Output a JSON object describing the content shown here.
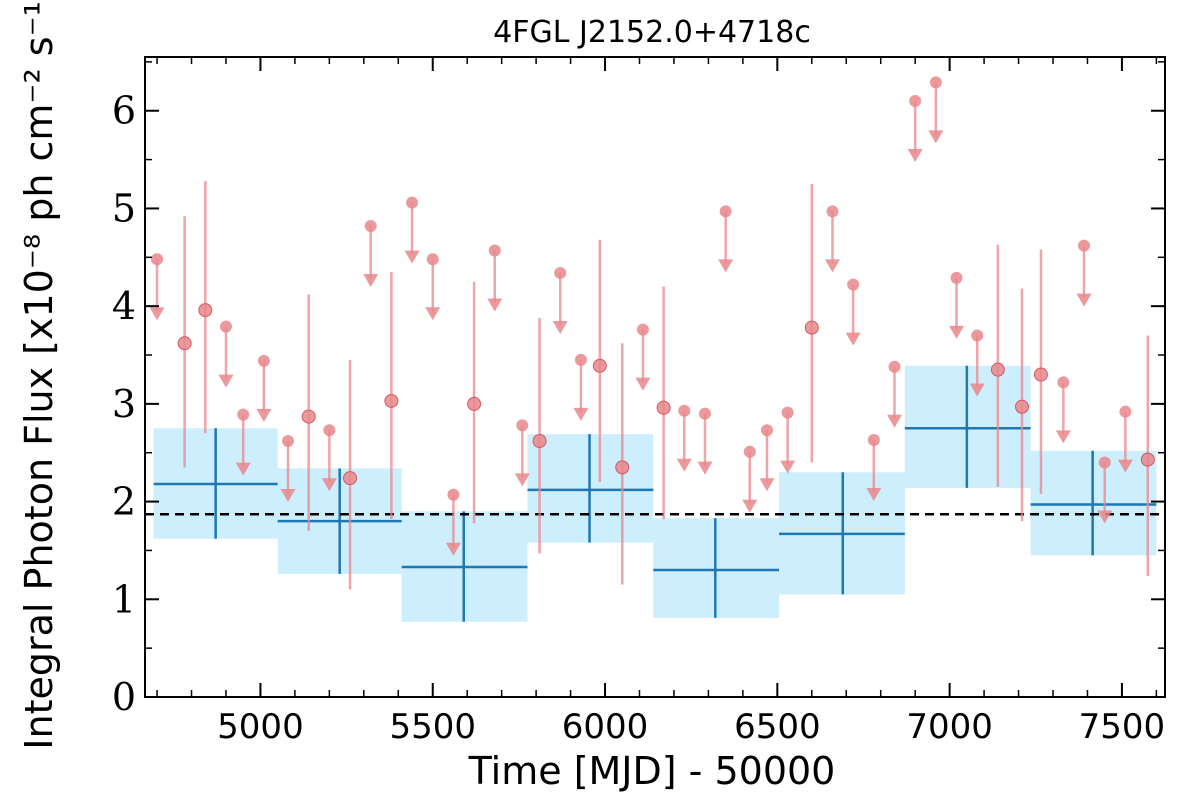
{
  "chart_data": {
    "type": "scatter",
    "title": "4FGL J2152.0+4718c",
    "xlabel": "Time [MJD] - 50000",
    "ylabel": "Integral Photon Flux [x10⁻⁸ ph cm⁻² s⁻¹]",
    "xlim": [
      4665,
      7625
    ],
    "ylim": [
      0,
      6.55
    ],
    "xticks": [
      5000,
      5500,
      6000,
      6500,
      7000,
      7500
    ],
    "yticks": [
      0,
      1,
      2,
      3,
      4,
      5,
      6
    ],
    "reference_line": {
      "y": 1.87,
      "style": "dashed"
    },
    "colors": {
      "points": "#e8878c",
      "bins": "#1f77b4",
      "bin_fill": "#cdeefc",
      "reference": "#000000"
    },
    "binned": [
      {
        "x": 4870,
        "x_lo": 4690,
        "x_hi": 5050,
        "y": 2.18,
        "y_lo": 1.62,
        "y_hi": 2.75
      },
      {
        "x": 5230,
        "x_lo": 5050,
        "x_hi": 5410,
        "y": 1.8,
        "y_lo": 1.26,
        "y_hi": 2.34
      },
      {
        "x": 5590,
        "x_lo": 5410,
        "x_hi": 5775,
        "y": 1.33,
        "y_lo": 0.77,
        "y_hi": 1.9
      },
      {
        "x": 5955,
        "x_lo": 5775,
        "x_hi": 6140,
        "y": 2.12,
        "y_lo": 1.58,
        "y_hi": 2.69
      },
      {
        "x": 6320,
        "x_lo": 6140,
        "x_hi": 6505,
        "y": 1.3,
        "y_lo": 0.81,
        "y_hi": 1.83
      },
      {
        "x": 6690,
        "x_lo": 6505,
        "x_hi": 6870,
        "y": 1.67,
        "y_lo": 1.05,
        "y_hi": 2.3
      },
      {
        "x": 7050,
        "x_lo": 6870,
        "x_hi": 7235,
        "y": 2.75,
        "y_lo": 2.14,
        "y_hi": 3.39
      },
      {
        "x": 7415,
        "x_lo": 7235,
        "x_hi": 7600,
        "y": 1.97,
        "y_lo": 1.45,
        "y_hi": 2.52
      }
    ],
    "measurements": [
      {
        "x": 4780,
        "y": 3.62,
        "y_lo": 2.35,
        "y_hi": 4.92
      },
      {
        "x": 4840,
        "y": 3.96,
        "y_lo": 2.7,
        "y_hi": 5.28
      },
      {
        "x": 5140,
        "y": 2.87,
        "y_lo": 1.7,
        "y_hi": 4.12
      },
      {
        "x": 5260,
        "y": 2.24,
        "y_lo": 1.1,
        "y_hi": 3.45
      },
      {
        "x": 5380,
        "y": 3.03,
        "y_lo": 1.82,
        "y_hi": 4.35
      },
      {
        "x": 5620,
        "y": 3.0,
        "y_lo": 1.78,
        "y_hi": 4.25
      },
      {
        "x": 5810,
        "y": 2.62,
        "y_lo": 1.47,
        "y_hi": 3.88
      },
      {
        "x": 5985,
        "y": 3.39,
        "y_lo": 2.2,
        "y_hi": 4.68
      },
      {
        "x": 6050,
        "y": 2.35,
        "y_lo": 1.15,
        "y_hi": 3.62
      },
      {
        "x": 6170,
        "y": 2.96,
        "y_lo": 1.82,
        "y_hi": 4.2
      },
      {
        "x": 6600,
        "y": 3.78,
        "y_lo": 2.4,
        "y_hi": 5.25
      },
      {
        "x": 7140,
        "y": 3.35,
        "y_lo": 2.15,
        "y_hi": 4.63
      },
      {
        "x": 7210,
        "y": 2.97,
        "y_lo": 1.8,
        "y_hi": 4.18
      },
      {
        "x": 7265,
        "y": 3.3,
        "y_lo": 2.08,
        "y_hi": 4.58
      },
      {
        "x": 7575,
        "y": 2.43,
        "y_lo": 1.24,
        "y_hi": 3.7
      }
    ],
    "upper_limits": [
      {
        "x": 4700,
        "y": 4.48
      },
      {
        "x": 4900,
        "y": 3.79
      },
      {
        "x": 4950,
        "y": 2.89
      },
      {
        "x": 5010,
        "y": 3.44
      },
      {
        "x": 5080,
        "y": 2.62
      },
      {
        "x": 5200,
        "y": 2.73
      },
      {
        "x": 5320,
        "y": 4.82
      },
      {
        "x": 5440,
        "y": 5.06
      },
      {
        "x": 5500,
        "y": 4.48
      },
      {
        "x": 5560,
        "y": 2.07
      },
      {
        "x": 5680,
        "y": 4.57
      },
      {
        "x": 5760,
        "y": 2.78
      },
      {
        "x": 5870,
        "y": 4.34
      },
      {
        "x": 5930,
        "y": 3.45
      },
      {
        "x": 6110,
        "y": 3.76
      },
      {
        "x": 6230,
        "y": 2.93
      },
      {
        "x": 6290,
        "y": 2.9
      },
      {
        "x": 6350,
        "y": 4.97
      },
      {
        "x": 6420,
        "y": 2.51
      },
      {
        "x": 6470,
        "y": 2.73
      },
      {
        "x": 6530,
        "y": 2.91
      },
      {
        "x": 6660,
        "y": 4.97
      },
      {
        "x": 6720,
        "y": 4.22
      },
      {
        "x": 6780,
        "y": 2.63
      },
      {
        "x": 6840,
        "y": 3.38
      },
      {
        "x": 6900,
        "y": 6.1
      },
      {
        "x": 6960,
        "y": 6.29
      },
      {
        "x": 7020,
        "y": 4.29
      },
      {
        "x": 7080,
        "y": 3.7
      },
      {
        "x": 7330,
        "y": 3.22
      },
      {
        "x": 7390,
        "y": 4.62
      },
      {
        "x": 7450,
        "y": 2.4
      },
      {
        "x": 7510,
        "y": 2.92
      }
    ]
  }
}
